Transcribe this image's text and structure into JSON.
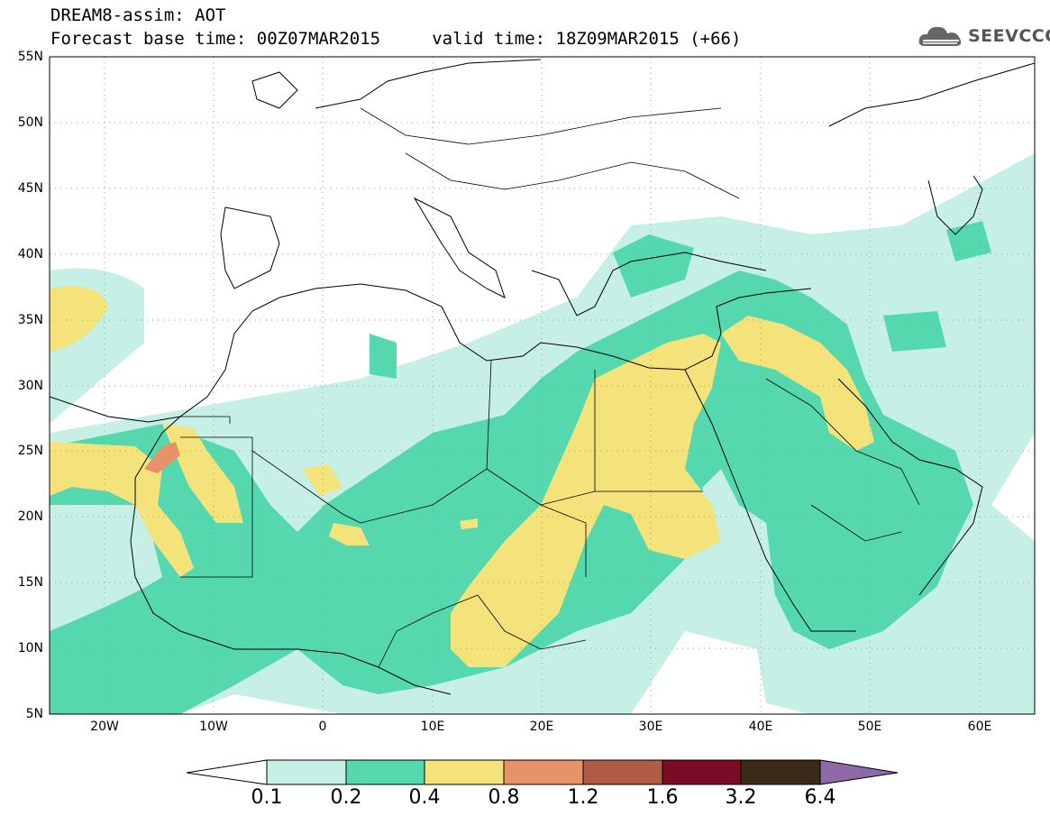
{
  "header": {
    "title_line1": "DREAM8-assim: AOT",
    "title_line2": "Forecast base time: 00Z07MAR2015     valid time: 18Z09MAR2015 (+66)",
    "logo_text": "SEEVCCC",
    "logo_icon": "cloud-logo-icon"
  },
  "map": {
    "projection": "cylindrical equidistant",
    "lon_range": [
      -25,
      65
    ],
    "lat_range": [
      5,
      55
    ],
    "lat_labels": [
      "55N",
      "50N",
      "45N",
      "40N",
      "35N",
      "30N",
      "25N",
      "20N",
      "15N",
      "10N",
      "5N"
    ],
    "lon_labels": [
      "20W",
      "10W",
      "0",
      "10E",
      "20E",
      "30E",
      "40E",
      "50E",
      "60E"
    ],
    "grid": "dotted"
  },
  "colorbar": {
    "levels": [
      "0.1",
      "0.2",
      "0.4",
      "0.8",
      "1.2",
      "1.6",
      "3.2",
      "6.4"
    ],
    "colors": [
      "#ffffff",
      "#c6efe6",
      "#55d8ae",
      "#f4e27a",
      "#e8926a",
      "#b05a48",
      "#7a0c25",
      "#3a2a18",
      "#8e6aa8"
    ]
  }
}
